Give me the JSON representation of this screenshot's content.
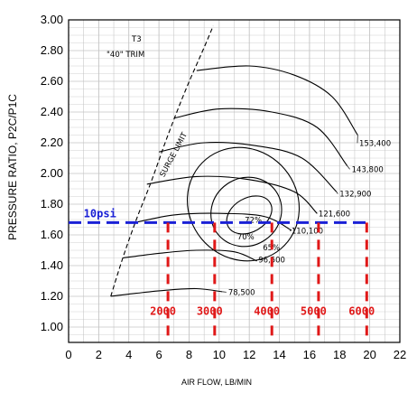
{
  "chart_data": {
    "type": "line",
    "title_lines": [
      "T3",
      "\"40\" TRIM"
    ],
    "xlabel": "AIR FLOW, LB/MIN",
    "ylabel": "PRESSURE RATIO, P2C/P1C",
    "xlim": [
      0,
      22
    ],
    "ylim": [
      0.9,
      3.0
    ],
    "xticks": [
      "0",
      "2",
      "4",
      "6",
      "8",
      "10",
      "12",
      "14",
      "16",
      "18",
      "20",
      "22"
    ],
    "yticks": [
      "1.00",
      "1.20",
      "1.40",
      "1.60",
      "1.80",
      "2.00",
      "2.20",
      "2.40",
      "2.60",
      "2.80",
      "3.00"
    ],
    "grid": true,
    "surge_limit": {
      "label": "SURGE LIMIT",
      "points": [
        [
          2.8,
          1.2
        ],
        [
          3.6,
          1.45
        ],
        [
          4.5,
          1.7
        ],
        [
          5.5,
          1.95
        ],
        [
          6.6,
          2.25
        ],
        [
          7.8,
          2.55
        ],
        [
          9.0,
          2.82
        ],
        [
          9.6,
          2.96
        ]
      ]
    },
    "speed_lines": [
      {
        "label": "78,500",
        "label_at": [
          10.6,
          1.21
        ],
        "points": [
          [
            2.8,
            1.2
          ],
          [
            4.5,
            1.22
          ],
          [
            6.5,
            1.24
          ],
          [
            8.5,
            1.25
          ],
          [
            10.2,
            1.23
          ]
        ]
      },
      {
        "label": "96,500",
        "label_at": [
          12.6,
          1.42
        ],
        "points": [
          [
            3.6,
            1.45
          ],
          [
            6,
            1.48
          ],
          [
            8.5,
            1.5
          ],
          [
            11,
            1.49
          ],
          [
            12.5,
            1.43
          ]
        ]
      },
      {
        "label": "110,100",
        "label_at": [
          14.8,
          1.61
        ],
        "points": [
          [
            4.4,
            1.68
          ],
          [
            7,
            1.73
          ],
          [
            10,
            1.74
          ],
          [
            13,
            1.72
          ],
          [
            14.8,
            1.63
          ]
        ]
      },
      {
        "label": "121,600",
        "label_at": [
          16.6,
          1.72
        ],
        "points": [
          [
            5.2,
            1.93
          ],
          [
            8.5,
            1.98
          ],
          [
            12,
            1.96
          ],
          [
            15,
            1.88
          ],
          [
            16.5,
            1.74
          ]
        ]
      },
      {
        "label": "132,900",
        "label_at": [
          18.0,
          1.85
        ],
        "points": [
          [
            6.0,
            2.14
          ],
          [
            9,
            2.2
          ],
          [
            12.5,
            2.18
          ],
          [
            15.5,
            2.1
          ],
          [
            17.8,
            1.88
          ]
        ]
      },
      {
        "label": "143,800",
        "label_at": [
          18.8,
          2.01
        ],
        "points": [
          [
            7.0,
            2.36
          ],
          [
            10,
            2.42
          ],
          [
            13.5,
            2.4
          ],
          [
            16.5,
            2.3
          ],
          [
            18.5,
            2.05
          ]
        ]
      },
      {
        "label": "153,400",
        "label_at": [
          19.3,
          2.18
        ],
        "points": [
          [
            8.5,
            2.67
          ],
          [
            12,
            2.7
          ],
          [
            15,
            2.64
          ],
          [
            17.5,
            2.5
          ],
          [
            19.2,
            2.25
          ]
        ]
      }
    ],
    "efficiency_islands": [
      {
        "label": "72%",
        "center": [
          12.0,
          1.73
        ],
        "rx": 1.6,
        "ry": 0.11,
        "rotate": -30
      },
      {
        "label": "70%",
        "center": [
          11.8,
          1.75
        ],
        "rx": 2.4,
        "ry": 0.22,
        "rotate": -35
      },
      {
        "label": "65%",
        "center": [
          11.6,
          1.8
        ],
        "rx": 3.6,
        "ry": 0.38,
        "rotate": -40
      }
    ],
    "boost_line": {
      "label": "10psi",
      "y": 1.68,
      "x_start": 0,
      "x_end": 20.0,
      "color": "#1a20d6"
    },
    "rpm_lines": [
      {
        "label": "2000",
        "x": 6.6
      },
      {
        "label": "3000",
        "x": 9.7
      },
      {
        "label": "4000",
        "x": 13.5
      },
      {
        "label": "5000",
        "x": 16.6
      },
      {
        "label": "6000",
        "x": 19.8
      }
    ],
    "rpm_color": "#e01818",
    "rpm_y_bottom": 0.9,
    "rpm_y_top": 1.68
  }
}
